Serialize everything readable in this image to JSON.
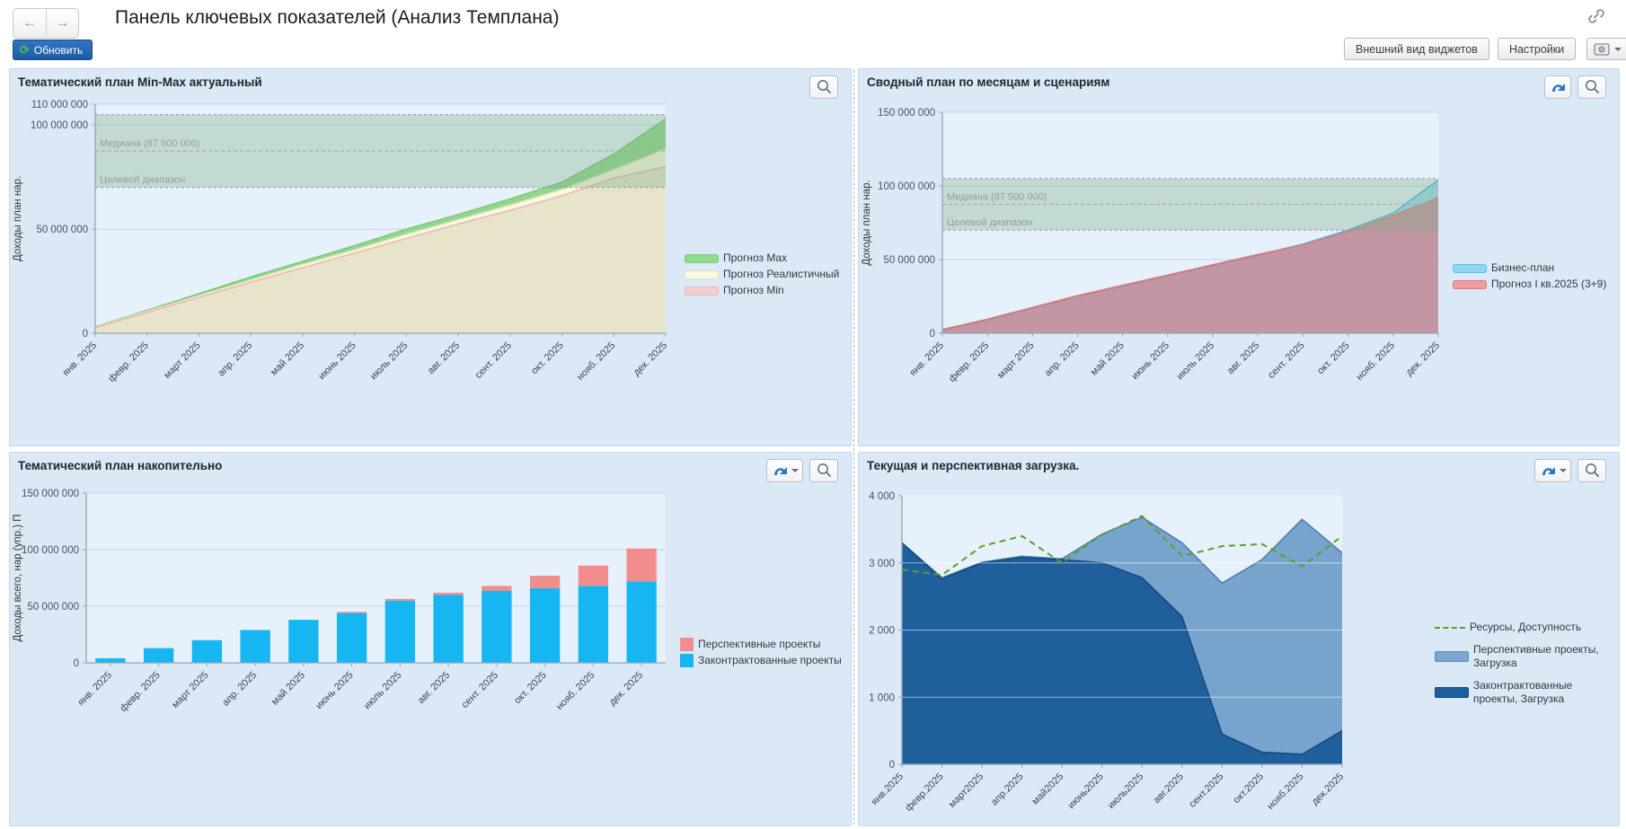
{
  "header": {
    "title": "Панель ключевых показателей (Анализ Темплана)",
    "refresh_label": "Обновить",
    "widgets_button": "Внешний вид виджетов",
    "settings_button": "Настройки"
  },
  "icons": {
    "back": "←",
    "forward": "→",
    "refresh": "⟳"
  },
  "colors": {
    "panel_bg": "#dbe9f7",
    "plot_bg": "#e7f1fb",
    "band_fill": "rgba(125,175,135,0.35)",
    "accent_blue": "#1d5da5",
    "grid": "#c6d2e0",
    "axis": "#95a5b6"
  },
  "chart_data": [
    {
      "type": "area",
      "title": "Тематический план Min-Max актуальный",
      "ylabel": "Доходы план нар.",
      "ylim": [
        0,
        110000000
      ],
      "yticks": [
        {
          "v": 0,
          "label": "0"
        },
        {
          "v": 50000000,
          "label": "50 000 000"
        },
        {
          "v": 100000000,
          "label": "100 000 000"
        },
        {
          "v": 110000000,
          "label": "110 000 000"
        }
      ],
      "categories": [
        "янв. 2025",
        "февр. 2025",
        "март 2025",
        "апр. 2025",
        "май 2025",
        "июнь 2025",
        "июль 2025",
        "авг. 2025",
        "сент. 2025",
        "окт. 2025",
        "нояб. 2025",
        "дек. 2025"
      ],
      "band": {
        "from": 70000000,
        "to": 105000000,
        "median": 87500000,
        "median_label": "Медиана (87 500 000)",
        "label": "Целевой диапазон",
        "fill": "rgba(125,175,135,0.35)"
      },
      "series": [
        {
          "name": "Прогноз Max",
          "swatch": "rect",
          "legend_color": "#8edc8e",
          "legend_border": "#7cc878",
          "fill": "#93d690",
          "stroke": "#7cc878",
          "values": [
            3000000,
            11000000,
            19000000,
            27000000,
            34500000,
            42000000,
            50000000,
            57000000,
            64500000,
            72500000,
            86000000,
            103000000
          ]
        },
        {
          "name": "Прогноз Реалистичный",
          "swatch": "rect",
          "legend_color": "#f9f9e3",
          "legend_border": "#e0e2c2",
          "fill": "#f9f9df",
          "stroke": "#e3e6c4",
          "values": [
            2800000,
            10500000,
            18000000,
            25500000,
            33000000,
            40000000,
            47500000,
            54500000,
            61500000,
            69000000,
            78500000,
            88500000
          ]
        },
        {
          "name": "Прогноз Min",
          "swatch": "rect",
          "legend_color": "#f3cfcf",
          "legend_border": "#e5b5b5",
          "fill": "#e8e4c9",
          "stroke": "#eab8b8",
          "values": [
            2600000,
            10000000,
            17200000,
            24500000,
            31500000,
            38500000,
            45500000,
            52500000,
            59000000,
            66000000,
            74500000,
            80000000
          ]
        }
      ]
    },
    {
      "type": "area",
      "title": "Сводный план по месяцам и сценариям",
      "ylabel": "Доходы план нар.",
      "ylim": [
        0,
        150000000
      ],
      "yticks": [
        {
          "v": 0,
          "label": "0"
        },
        {
          "v": 50000000,
          "label": "50 000 000"
        },
        {
          "v": 100000000,
          "label": "100 000 000"
        },
        {
          "v": 150000000,
          "label": "150 000 000"
        }
      ],
      "categories": [
        "янв. 2025",
        "февр. 2025",
        "март 2025",
        "апр. 2025",
        "май 2025",
        "июнь 2025",
        "июль 2025",
        "авг. 2025",
        "сент. 2025",
        "окт. 2025",
        "нояб. 2025",
        "дек. 2025"
      ],
      "band": {
        "from": 70000000,
        "to": 105000000,
        "median": 87500000,
        "median_label": "Медиана (87 500 000)",
        "label": "Целевой диапазон",
        "fill": "rgba(125,175,135,0.35)"
      },
      "series": [
        {
          "name": "Бизнес-план",
          "swatch": "rect",
          "legend_color": "#8ed5f0",
          "legend_border": "#5fc0e8",
          "fill": "rgba(120,200,238,0.60)",
          "stroke": "#49b7e8",
          "values": [
            2000000,
            9000000,
            17000000,
            25000000,
            32000000,
            39000000,
            46000000,
            53000000,
            60500000,
            70000000,
            81500000,
            104000000
          ]
        },
        {
          "name": "Прогноз I кв.2025 (3+9)",
          "swatch": "rect",
          "legend_color": "#ee9c9c",
          "legend_border": "#dd7a7a",
          "fill": "rgba(214,110,115,0.62)",
          "stroke": "#dd7a7a",
          "values": [
            2500000,
            9500000,
            17500000,
            25500000,
            32500000,
            39500000,
            46500000,
            53500000,
            60000000,
            69000000,
            80000000,
            92000000
          ]
        }
      ]
    },
    {
      "type": "bar",
      "title": "Тематический план накопительно",
      "ylabel": "Доходы всего, нар (упр.) П",
      "ylim": [
        0,
        150000000
      ],
      "yticks": [
        {
          "v": 0,
          "label": "0"
        },
        {
          "v": 50000000,
          "label": "50 000 000"
        },
        {
          "v": 100000000,
          "label": "100 000 000"
        },
        {
          "v": 150000000,
          "label": "150 000 000"
        }
      ],
      "categories": [
        "янв. 2025",
        "февр. 2025",
        "март 2025",
        "апр. 2025",
        "май 2025",
        "июнь 2025",
        "июль 2025",
        "авг. 2025",
        "сент. 2025",
        "окт. 2025",
        "нояб. 2025",
        "дек. 2025"
      ],
      "series": [
        {
          "name": "Перспективные проекты",
          "role": "top",
          "swatch": "square",
          "legend_color": "#f28d8d",
          "fill": "#f28d8d",
          "values": [
            0,
            0,
            0,
            0,
            0,
            1000000,
            1500000,
            2000000,
            4500000,
            11000000,
            18000000,
            29000000
          ]
        },
        {
          "name": "Законтрактованные проекты",
          "role": "base",
          "swatch": "square",
          "legend_color": "#16b6f2",
          "fill": "#16b6f2",
          "values": [
            4000000,
            13000000,
            20000000,
            29000000,
            38000000,
            44000000,
            55000000,
            60000000,
            63500000,
            66000000,
            68000000,
            72000000
          ]
        }
      ]
    },
    {
      "type": "load",
      "title": "Текущая и перспективная загрузка.",
      "ylabel": "",
      "ylim": [
        0,
        4000
      ],
      "yticks": [
        {
          "v": 0,
          "label": "0"
        },
        {
          "v": 1000,
          "label": "1 000"
        },
        {
          "v": 2000,
          "label": "2 000"
        },
        {
          "v": 3000,
          "label": "3 000"
        },
        {
          "v": 4000,
          "label": "4 000"
        }
      ],
      "categories": [
        "янв.2025",
        "февр.2025",
        "март2025",
        "апр.2025",
        "май2025",
        "июнь2025",
        "июль2025",
        "авг.2025",
        "сент.2025",
        "окт.2025",
        "нояб.2025",
        "дек.2025"
      ],
      "series": [
        {
          "name": "Ресурсы, Доступность",
          "role": "line",
          "swatch": "line",
          "legend_color": "#58a12b",
          "stroke": "#58a12b",
          "values": [
            2900,
            2820,
            3250,
            3400,
            3000,
            3420,
            3700,
            3100,
            3250,
            3280,
            2950,
            3400
          ]
        },
        {
          "name": "Перспективные проекты, Загрузка",
          "role": "upper",
          "swatch": "wide",
          "legend_color": "#7aa6cf",
          "legend_border": "#5c8cb8",
          "fill": "#77a3cc",
          "stroke": "#4a7dab",
          "values": [
            0,
            20,
            10,
            20,
            10,
            430,
            900,
            1100,
            2250,
            2870,
            3500,
            2650
          ]
        },
        {
          "name": "Законтрактованные проекты, Загрузка",
          "role": "base",
          "swatch": "wide",
          "legend_color": "#1d5f9e",
          "legend_border": "#14497c",
          "fill": "#1e5f9c",
          "stroke": "#14497c",
          "values": [
            3300,
            2760,
            3000,
            3080,
            3050,
            3000,
            2780,
            2200,
            450,
            180,
            150,
            500
          ]
        }
      ]
    }
  ]
}
